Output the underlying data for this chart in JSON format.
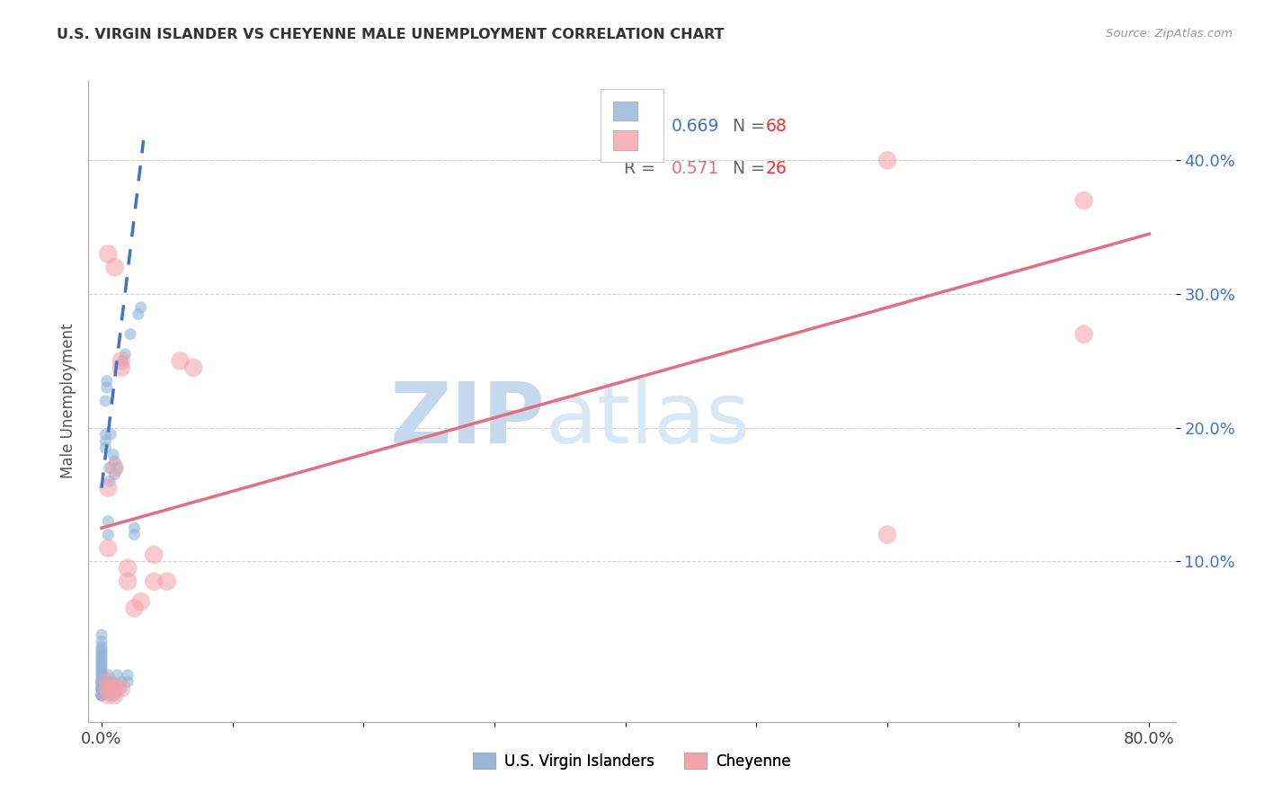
{
  "title": "U.S. VIRGIN ISLANDER VS CHEYENNE MALE UNEMPLOYMENT CORRELATION CHART",
  "source": "Source: ZipAtlas.com",
  "ylabel": "Male Unemployment",
  "xlim": [
    -0.01,
    0.82
  ],
  "ylim": [
    -0.02,
    0.46
  ],
  "xtick_positions": [
    0.0,
    0.1,
    0.2,
    0.3,
    0.4,
    0.5,
    0.6,
    0.7,
    0.8
  ],
  "xticklabels": [
    "0.0%",
    "",
    "",
    "",
    "",
    "",
    "",
    "",
    "80.0%"
  ],
  "ytick_positions": [
    0.1,
    0.2,
    0.3,
    0.4
  ],
  "ytick_labels": [
    "10.0%",
    "20.0%",
    "30.0%",
    "40.0%"
  ],
  "blue_color": "#92B4D9",
  "pink_color": "#F4A0A8",
  "blue_line_color": "#4472C4",
  "pink_line_color": "#E07080",
  "blue_tick_color": "#4472C4",
  "watermark_zip": "ZIP",
  "watermark_atlas": "atlas",
  "watermark_color": "#DDEEFF",
  "vi_scatter_x": [
    0.0,
    0.0,
    0.0,
    0.0,
    0.0,
    0.0,
    0.0,
    0.0,
    0.0,
    0.0,
    0.0,
    0.0,
    0.0,
    0.0,
    0.0,
    0.0,
    0.0,
    0.0,
    0.0,
    0.0,
    0.0,
    0.0,
    0.0,
    0.0,
    0.0,
    0.0,
    0.0,
    0.0,
    0.0,
    0.0,
    0.005,
    0.005,
    0.005,
    0.005,
    0.005,
    0.005,
    0.007,
    0.007,
    0.007,
    0.008,
    0.008,
    0.01,
    0.01,
    0.01,
    0.01,
    0.012,
    0.012,
    0.015,
    0.015,
    0.016,
    0.018,
    0.02,
    0.02,
    0.022,
    0.025,
    0.025,
    0.028,
    0.03,
    0.003,
    0.003,
    0.003,
    0.003,
    0.004,
    0.004,
    0.006,
    0.006,
    0.007,
    0.009
  ],
  "vi_scatter_y": [
    0.0,
    0.0,
    0.0,
    0.0,
    0.0,
    0.0,
    0.005,
    0.005,
    0.005,
    0.005,
    0.008,
    0.008,
    0.01,
    0.01,
    0.01,
    0.012,
    0.014,
    0.016,
    0.018,
    0.02,
    0.022,
    0.024,
    0.026,
    0.028,
    0.03,
    0.032,
    0.034,
    0.036,
    0.04,
    0.045,
    0.0,
    0.005,
    0.01,
    0.015,
    0.12,
    0.13,
    0.0,
    0.005,
    0.01,
    0.005,
    0.01,
    0.0,
    0.005,
    0.165,
    0.175,
    0.015,
    0.17,
    0.005,
    0.01,
    0.25,
    0.255,
    0.01,
    0.015,
    0.27,
    0.12,
    0.125,
    0.285,
    0.29,
    0.185,
    0.19,
    0.195,
    0.22,
    0.23,
    0.235,
    0.16,
    0.17,
    0.195,
    0.18
  ],
  "cheyenne_scatter_x": [
    0.005,
    0.005,
    0.005,
    0.005,
    0.005,
    0.005,
    0.01,
    0.01,
    0.01,
    0.01,
    0.015,
    0.015,
    0.015,
    0.02,
    0.02,
    0.04,
    0.04,
    0.07,
    0.6,
    0.6,
    0.75,
    0.75,
    0.025,
    0.03,
    0.05,
    0.06
  ],
  "cheyenne_scatter_y": [
    0.0,
    0.005,
    0.01,
    0.11,
    0.155,
    0.33,
    0.0,
    0.005,
    0.17,
    0.32,
    0.005,
    0.245,
    0.25,
    0.085,
    0.095,
    0.105,
    0.085,
    0.245,
    0.12,
    0.4,
    0.27,
    0.37,
    0.065,
    0.07,
    0.085,
    0.25
  ],
  "blue_trend_x0": 0.0,
  "blue_trend_y0": 0.155,
  "blue_trend_x1": 0.032,
  "blue_trend_y1": 0.415,
  "pink_trend_x0": 0.0,
  "pink_trend_y0": 0.125,
  "pink_trend_x1": 0.8,
  "pink_trend_y1": 0.345
}
